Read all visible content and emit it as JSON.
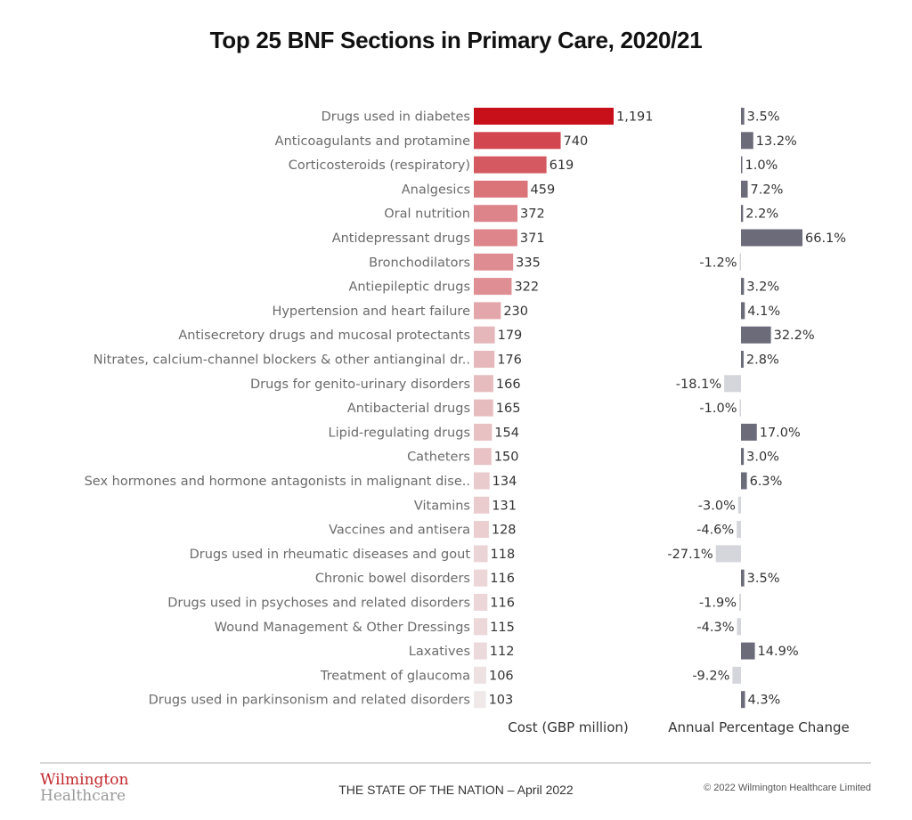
{
  "chart_data": {
    "type": "bar",
    "title": "Top 25 BNF Sections in Primary Care, 2020/21",
    "categories": [
      "Drugs used in diabetes",
      "Anticoagulants and protamine",
      "Corticosteroids (respiratory)",
      "Analgesics",
      "Oral nutrition",
      "Antidepressant drugs",
      "Bronchodilators",
      "Antiepileptic drugs",
      "Hypertension and heart failure",
      "Antisecretory drugs and mucosal protectants",
      "Nitrates, calcium-channel blockers & other antianginal dr..",
      "Drugs for genito-urinary disorders",
      "Antibacterial drugs",
      "Lipid-regulating drugs",
      "Catheters",
      "Sex hormones and hormone antagonists in malignant dise..",
      "Vitamins",
      "Vaccines and antisera",
      "Drugs used in rheumatic diseases and gout",
      "Chronic bowel disorders",
      "Drugs used in psychoses and related disorders",
      "Wound Management & Other Dressings",
      "Laxatives",
      "Treatment of glaucoma",
      "Drugs used in parkinsonism and related disorders"
    ],
    "series": [
      {
        "name": "Cost (GBP million)",
        "values": [
          1191,
          740,
          619,
          459,
          372,
          371,
          335,
          322,
          230,
          179,
          176,
          166,
          165,
          154,
          150,
          134,
          131,
          128,
          118,
          116,
          116,
          115,
          112,
          106,
          103
        ],
        "labels": [
          "1,191",
          "740",
          "619",
          "459",
          "372",
          "371",
          "335",
          "322",
          "230",
          "179",
          "176",
          "166",
          "165",
          "154",
          "150",
          "134",
          "131",
          "128",
          "118",
          "116",
          "116",
          "115",
          "112",
          "106",
          "103"
        ],
        "color_high": "#c8101a",
        "color_low": "#efe9ea"
      },
      {
        "name": "Annual Percentage Change",
        "values": [
          3.5,
          13.2,
          1.0,
          7.2,
          2.2,
          66.1,
          -1.2,
          3.2,
          4.1,
          32.2,
          2.8,
          -18.1,
          -1.0,
          17.0,
          3.0,
          6.3,
          -3.0,
          -4.6,
          -27.1,
          3.5,
          -1.9,
          -4.3,
          14.9,
          -9.2,
          4.3
        ],
        "labels": [
          "3.5%",
          "13.2%",
          "1.0%",
          "7.2%",
          "2.2%",
          "66.1%",
          "-1.2%",
          "3.2%",
          "4.1%",
          "32.2%",
          "2.8%",
          "-18.1%",
          "-1.0%",
          "17.0%",
          "3.0%",
          "6.3%",
          "-3.0%",
          "-4.6%",
          "-27.1%",
          "3.5%",
          "-1.9%",
          "-4.3%",
          "14.9%",
          "-9.2%",
          "4.3%"
        ],
        "color_positive": "#6b6b7a",
        "color_negative": "#d5d6dc"
      }
    ],
    "xlabel_cost": "Cost (GBP million)",
    "xlabel_change": "Annual Percentage Change",
    "grid": false,
    "legend": "none"
  },
  "footer": {
    "logo_line1": "Wilmington",
    "logo_line2": "Healthcare",
    "center": "THE STATE OF THE NATION – April 2022",
    "copyright": "© 2022 Wilmington Healthcare Limited"
  }
}
